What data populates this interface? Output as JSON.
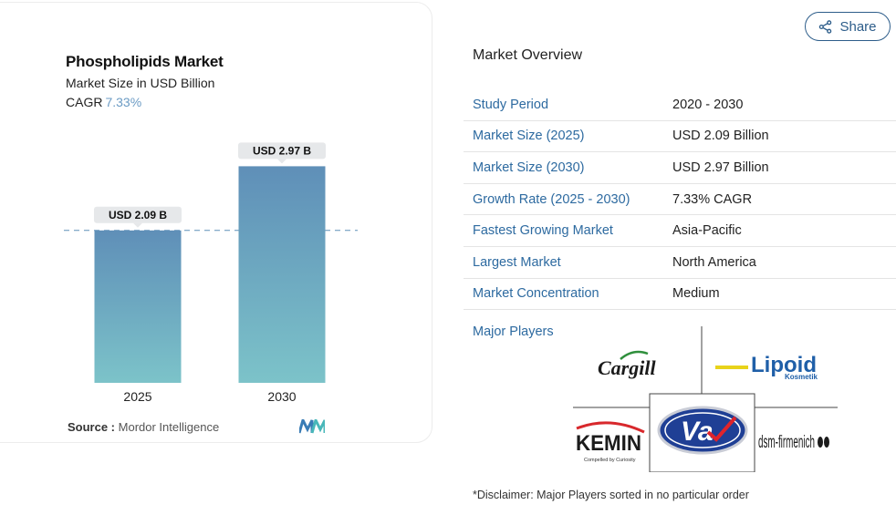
{
  "card": {
    "title": "Phospholipids Market",
    "subtitle": "Market Size in USD Billion",
    "cagr_label": "CAGR",
    "cagr_value": "7.33%",
    "source_label": "Source :",
    "source_value": "Mordor Intelligence"
  },
  "chart_data": {
    "type": "bar",
    "categories": [
      "2025",
      "2030"
    ],
    "values": [
      2.09,
      2.97
    ],
    "data_labels": [
      "USD 2.09 B",
      "USD 2.97 B"
    ],
    "ylim": [
      0,
      3.5
    ],
    "reference_line": 2.09,
    "colors": {
      "bar_top": "#5f8fb8",
      "bar_bottom": "#7cc3c9",
      "label_bg": "#e6e8ea",
      "line": "#5f8fb8"
    }
  },
  "share": {
    "label": "Share"
  },
  "overview": {
    "title": "Market Overview",
    "rows": [
      {
        "key": "Study Period",
        "value": "2020 - 2030"
      },
      {
        "key": "Market Size (2025)",
        "value": "USD 2.09 Billion"
      },
      {
        "key": "Market Size (2030)",
        "value": "USD 2.97 Billion"
      },
      {
        "key": "Growth Rate (2025 - 2030)",
        "value": "7.33% CAGR"
      },
      {
        "key": "Fastest Growing Market",
        "value": "Asia-Pacific"
      },
      {
        "key": "Largest Market",
        "value": "North America"
      },
      {
        "key": "Market Concentration",
        "value": "Medium"
      }
    ],
    "players_label": "Major Players",
    "players": [
      {
        "name": "Cargill"
      },
      {
        "name": "Lipoid",
        "tagline": "Kosmetik"
      },
      {
        "name": "Va",
        "logo": "va-logo"
      },
      {
        "name": "KEMIN",
        "tagline": "Compelled by Curiosity"
      },
      {
        "name": "dsm-firmenich"
      }
    ]
  },
  "disclaimer": "*Disclaimer: Major Players sorted in no particular order"
}
